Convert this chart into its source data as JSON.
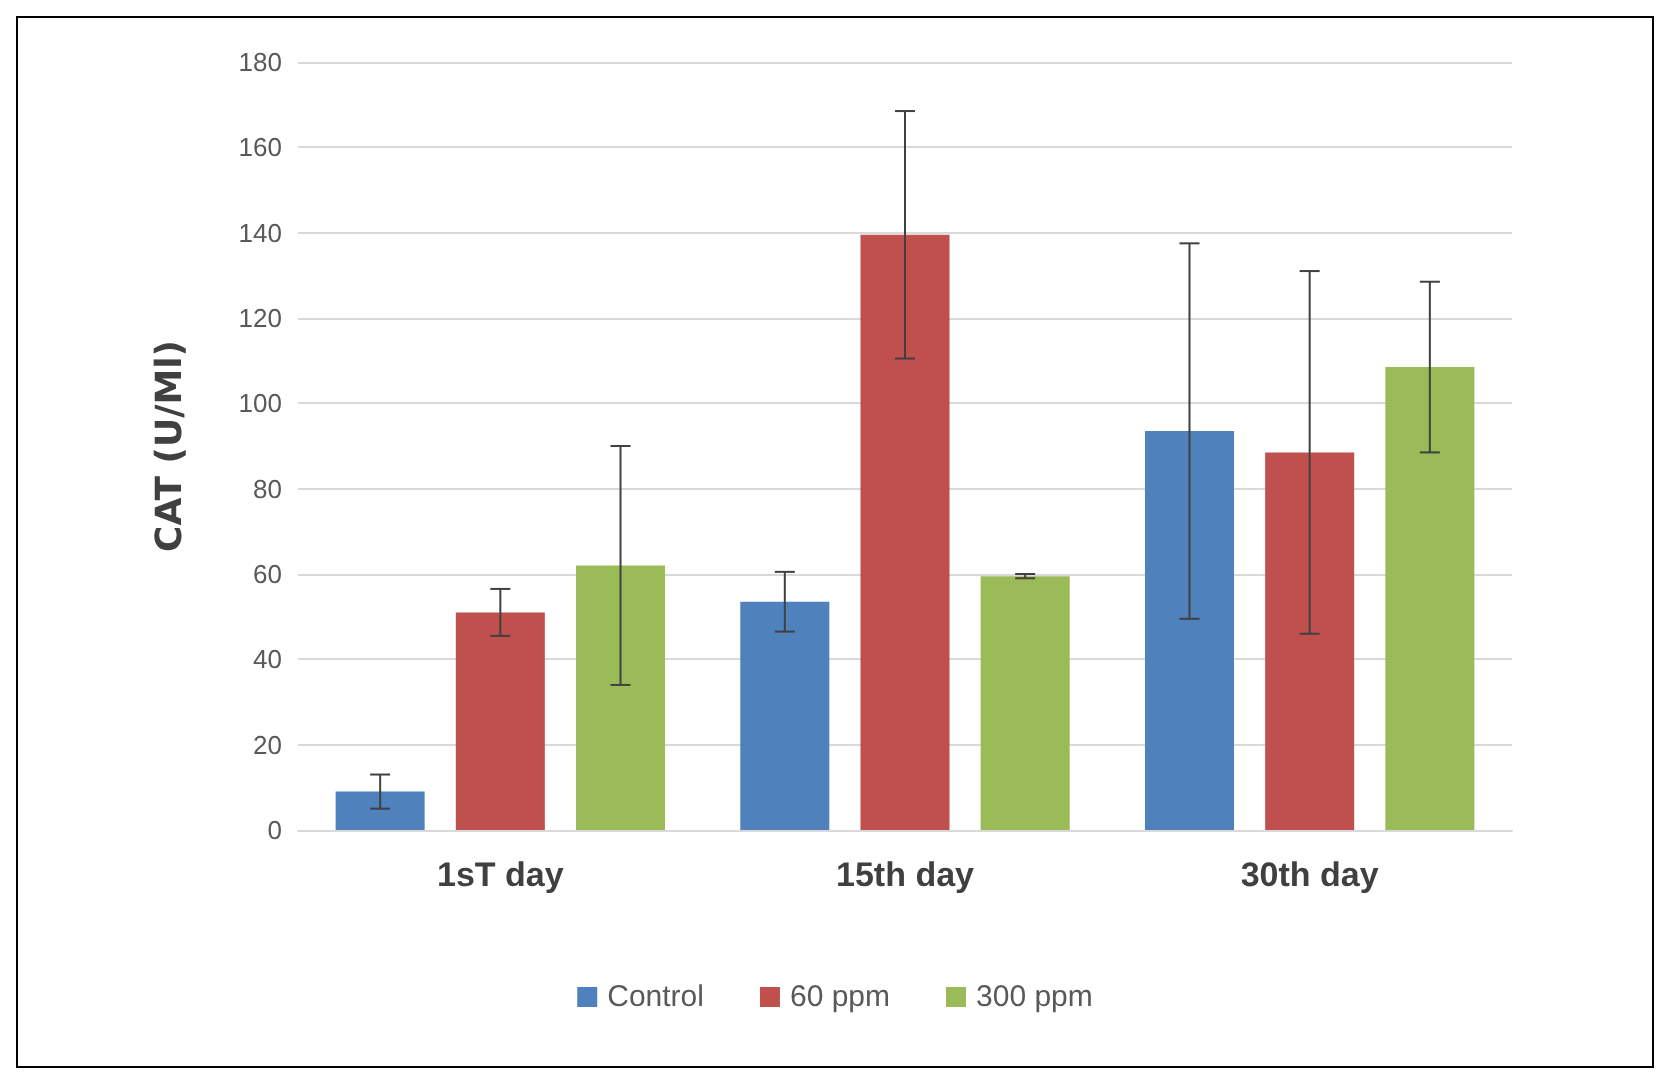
{
  "chart_data": {
    "type": "bar",
    "ylabel": "CAT (U/Ml)",
    "categories": [
      "1sT day",
      "15th day",
      "30th day"
    ],
    "series": [
      {
        "name": "Control",
        "color": "#4f81bd",
        "values": [
          9,
          53.5,
          93.5
        ],
        "errors": [
          4,
          7,
          44
        ]
      },
      {
        "name": "60 ppm",
        "color": "#c0504d",
        "values": [
          51,
          139.5,
          88.5
        ],
        "errors": [
          5.5,
          29,
          42.5
        ]
      },
      {
        "name": "300 ppm",
        "color": "#9bbb59",
        "values": [
          62,
          59.5,
          108.5
        ],
        "errors": [
          28,
          0.5,
          20
        ]
      }
    ],
    "ylim": [
      0,
      180
    ],
    "yticks": [
      0,
      20,
      40,
      60,
      80,
      100,
      120,
      140,
      160,
      180
    ],
    "grid": "y",
    "legend": "bottom"
  }
}
